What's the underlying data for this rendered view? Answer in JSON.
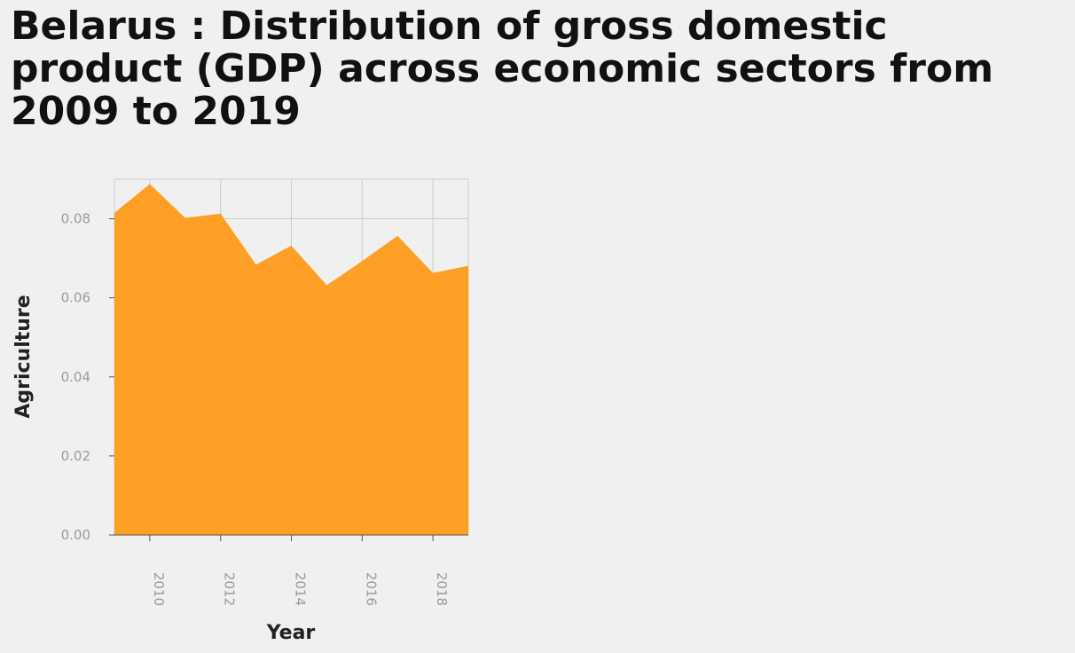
{
  "chart_data": {
    "type": "area",
    "title": "Belarus : Distribution of gross domestic product (GDP) across economic sectors from 2009 to 2019",
    "xlabel": "Year",
    "ylabel": "Agriculture",
    "x": [
      2009,
      2010,
      2011,
      2012,
      2013,
      2014,
      2015,
      2016,
      2017,
      2018,
      2019
    ],
    "series": [
      {
        "values": [
          0.0815,
          0.0888,
          0.0802,
          0.0813,
          0.0684,
          0.0732,
          0.0632,
          0.0693,
          0.0757,
          0.0663,
          0.0681
        ]
      }
    ],
    "xlim": [
      2009,
      2019
    ],
    "ylim": [
      0,
      0.09
    ],
    "x_ticks": [
      "2010",
      "2012",
      "2014",
      "2016",
      "2018"
    ],
    "y_ticks": [
      "0.00",
      "0.02",
      "0.04",
      "0.06",
      "0.08"
    ],
    "grid": true,
    "fill_color": "#ff9f26",
    "background_color": "#f0f0f0",
    "grid_color": "#cccccc"
  }
}
